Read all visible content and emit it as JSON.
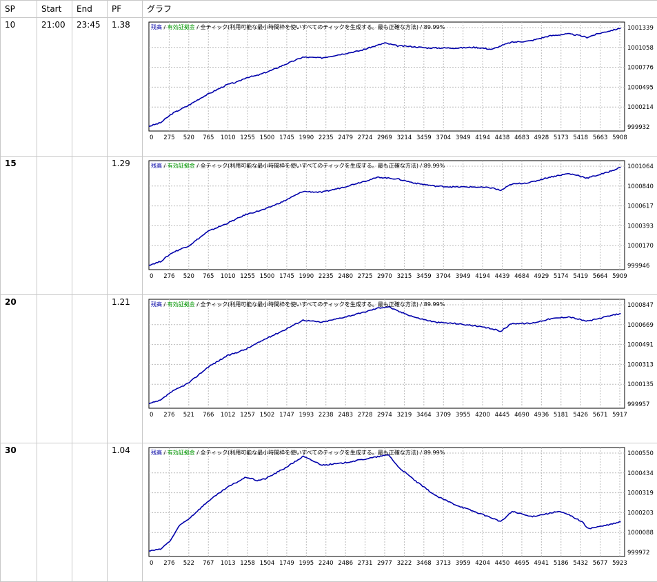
{
  "columns": [
    "SP",
    "Start",
    "End",
    "PF",
    "グラフ"
  ],
  "legend": {
    "balance": "残高",
    "sep1": " / ",
    "margin": "有効証拠金",
    "sep2": " / ",
    "mode": "全ティック(利用可能な最小時間枠を使いすべてのティックを生成する。最も正確な方法)",
    "sep3": " / ",
    "quality": "89.99%"
  },
  "rows": [
    {
      "sp": "10",
      "start": "21:00",
      "end": "23:45",
      "pf": "1.38",
      "chart_data": {
        "type": "line",
        "x_ticks": [
          "0",
          "275",
          "520",
          "765",
          "1010",
          "1255",
          "1500",
          "1745",
          "1990",
          "2235",
          "2479",
          "2724",
          "2969",
          "3214",
          "3459",
          "3704",
          "3949",
          "4194",
          "4438",
          "4683",
          "4928",
          "5173",
          "5418",
          "5663",
          "5908"
        ],
        "y_ticks": [
          "999932",
          "1000214",
          "1000495",
          "1000776",
          "1001058",
          "1001339"
        ],
        "xlim": [
          0,
          6150
        ],
        "ylim": [
          999932,
          1001339
        ],
        "grid": true,
        "legend_position": "top-left",
        "series": [
          {
            "color": "#0000aa",
            "points": [
              [
                0,
                999940
              ],
              [
                150,
                999990
              ],
              [
                300,
                1000120
              ],
              [
                500,
                1000230
              ],
              [
                700,
                1000360
              ],
              [
                900,
                1000470
              ],
              [
                1010,
                1000530
              ],
              [
                1150,
                1000570
              ],
              [
                1255,
                1000630
              ],
              [
                1400,
                1000660
              ],
              [
                1600,
                1000740
              ],
              [
                1745,
                1000810
              ],
              [
                1990,
                1000920
              ],
              [
                2235,
                1000910
              ],
              [
                2479,
                1000960
              ],
              [
                2724,
                1001010
              ],
              [
                2900,
                1001070
              ],
              [
                3050,
                1001120
              ],
              [
                3214,
                1001080
              ],
              [
                3400,
                1001070
              ],
              [
                3600,
                1001050
              ],
              [
                3800,
                1001050
              ],
              [
                4000,
                1001050
              ],
              [
                4200,
                1001060
              ],
              [
                4300,
                1001050
              ],
              [
                4438,
                1001030
              ],
              [
                4550,
                1001080
              ],
              [
                4683,
                1001130
              ],
              [
                4928,
                1001150
              ],
              [
                5173,
                1001220
              ],
              [
                5418,
                1001250
              ],
              [
                5550,
                1001230
              ],
              [
                5663,
                1001200
              ],
              [
                5800,
                1001250
              ],
              [
                5908,
                1001280
              ],
              [
                6100,
                1001330
              ]
            ]
          }
        ]
      }
    },
    {
      "sp": "15",
      "start": "",
      "end": "",
      "pf": "1.29",
      "chart_data": {
        "type": "line",
        "x_ticks": [
          "0",
          "276",
          "520",
          "765",
          "1010",
          "1255",
          "1500",
          "1745",
          "1990",
          "2235",
          "2480",
          "2725",
          "2970",
          "3215",
          "3459",
          "3704",
          "3949",
          "4194",
          "4439",
          "4684",
          "4929",
          "5174",
          "5419",
          "5664",
          "5909"
        ],
        "y_ticks": [
          "999946",
          "1000170",
          "1000393",
          "1000617",
          "1000840",
          "1001064"
        ],
        "xlim": [
          0,
          6150
        ],
        "ylim": [
          999946,
          1001064
        ],
        "grid": true,
        "legend_position": "top-left",
        "series": [
          {
            "color": "#0000aa",
            "points": [
              [
                0,
                999950
              ],
              [
                150,
                999990
              ],
              [
                300,
                1000090
              ],
              [
                520,
                1000170
              ],
              [
                765,
                1000330
              ],
              [
                1010,
                1000420
              ],
              [
                1255,
                1000520
              ],
              [
                1500,
                1000580
              ],
              [
                1745,
                1000670
              ],
              [
                1990,
                1000780
              ],
              [
                2235,
                1000770
              ],
              [
                2480,
                1000820
              ],
              [
                2725,
                1000880
              ],
              [
                2970,
                1000940
              ],
              [
                3215,
                1000920
              ],
              [
                3459,
                1000870
              ],
              [
                3704,
                1000840
              ],
              [
                3949,
                1000830
              ],
              [
                4194,
                1000830
              ],
              [
                4439,
                1000820
              ],
              [
                4550,
                1000790
              ],
              [
                4684,
                1000860
              ],
              [
                4929,
                1000880
              ],
              [
                5174,
                1000940
              ],
              [
                5419,
                1000980
              ],
              [
                5550,
                1000960
              ],
              [
                5664,
                1000930
              ],
              [
                5909,
                1000990
              ],
              [
                6100,
                1001050
              ]
            ]
          }
        ]
      }
    },
    {
      "sp": "20",
      "start": "",
      "end": "",
      "pf": "1.21",
      "chart_data": {
        "type": "line",
        "x_ticks": [
          "0",
          "276",
          "521",
          "766",
          "1012",
          "1257",
          "1502",
          "1747",
          "1993",
          "2238",
          "2483",
          "2728",
          "2974",
          "3219",
          "3464",
          "3709",
          "3955",
          "4200",
          "4445",
          "4690",
          "4936",
          "5181",
          "5426",
          "5671",
          "5917"
        ],
        "y_ticks": [
          "999957",
          "1000135",
          "1000313",
          "1000491",
          "1000669",
          "1000847"
        ],
        "xlim": [
          0,
          6150
        ],
        "ylim": [
          999957,
          1000847
        ],
        "grid": true,
        "legend_position": "top-left",
        "series": [
          {
            "color": "#0000aa",
            "points": [
              [
                0,
                999960
              ],
              [
                150,
                999990
              ],
              [
                276,
                1000060
              ],
              [
                521,
                1000150
              ],
              [
                766,
                1000290
              ],
              [
                1012,
                1000390
              ],
              [
                1257,
                1000450
              ],
              [
                1502,
                1000540
              ],
              [
                1747,
                1000620
              ],
              [
                1993,
                1000710
              ],
              [
                2238,
                1000690
              ],
              [
                2483,
                1000730
              ],
              [
                2728,
                1000770
              ],
              [
                2974,
                1000820
              ],
              [
                3100,
                1000830
              ],
              [
                3219,
                1000790
              ],
              [
                3464,
                1000730
              ],
              [
                3709,
                1000690
              ],
              [
                3955,
                1000680
              ],
              [
                4200,
                1000660
              ],
              [
                4445,
                1000630
              ],
              [
                4550,
                1000610
              ],
              [
                4690,
                1000680
              ],
              [
                4936,
                1000680
              ],
              [
                5181,
                1000720
              ],
              [
                5426,
                1000740
              ],
              [
                5600,
                1000710
              ],
              [
                5671,
                1000700
              ],
              [
                5917,
                1000740
              ],
              [
                6100,
                1000770
              ]
            ]
          }
        ]
      }
    },
    {
      "sp": "30",
      "start": "",
      "end": "",
      "pf": "1.04",
      "chart_data": {
        "type": "line",
        "x_ticks": [
          "0",
          "276",
          "522",
          "767",
          "1013",
          "1258",
          "1504",
          "1749",
          "1995",
          "2240",
          "2486",
          "2731",
          "2977",
          "3222",
          "3468",
          "3713",
          "3959",
          "4204",
          "4450",
          "4695",
          "4941",
          "5186",
          "5432",
          "5677",
          "5923"
        ],
        "y_ticks": [
          "999972",
          "1000088",
          "1000203",
          "1000319",
          "1000434",
          "1000550"
        ],
        "xlim": [
          0,
          6150
        ],
        "ylim": [
          999972,
          1000550
        ],
        "grid": true,
        "legend_position": "top-left",
        "series": [
          {
            "color": "#0000aa",
            "points": [
              [
                0,
                999980
              ],
              [
                150,
                999990
              ],
              [
                276,
                1000040
              ],
              [
                400,
                1000130
              ],
              [
                522,
                1000170
              ],
              [
                767,
                1000270
              ],
              [
                1013,
                1000350
              ],
              [
                1258,
                1000410
              ],
              [
                1400,
                1000390
              ],
              [
                1504,
                1000400
              ],
              [
                1749,
                1000460
              ],
              [
                1995,
                1000530
              ],
              [
                2240,
                1000480
              ],
              [
                2486,
                1000490
              ],
              [
                2731,
                1000510
              ],
              [
                2977,
                1000530
              ],
              [
                3100,
                1000540
              ],
              [
                3222,
                1000470
              ],
              [
                3468,
                1000380
              ],
              [
                3713,
                1000300
              ],
              [
                3959,
                1000250
              ],
              [
                4204,
                1000210
              ],
              [
                4450,
                1000170
              ],
              [
                4550,
                1000150
              ],
              [
                4695,
                1000210
              ],
              [
                4941,
                1000180
              ],
              [
                5186,
                1000200
              ],
              [
                5300,
                1000210
              ],
              [
                5432,
                1000190
              ],
              [
                5600,
                1000150
              ],
              [
                5677,
                1000110
              ],
              [
                5923,
                1000130
              ],
              [
                6100,
                1000150
              ]
            ]
          }
        ]
      }
    }
  ]
}
